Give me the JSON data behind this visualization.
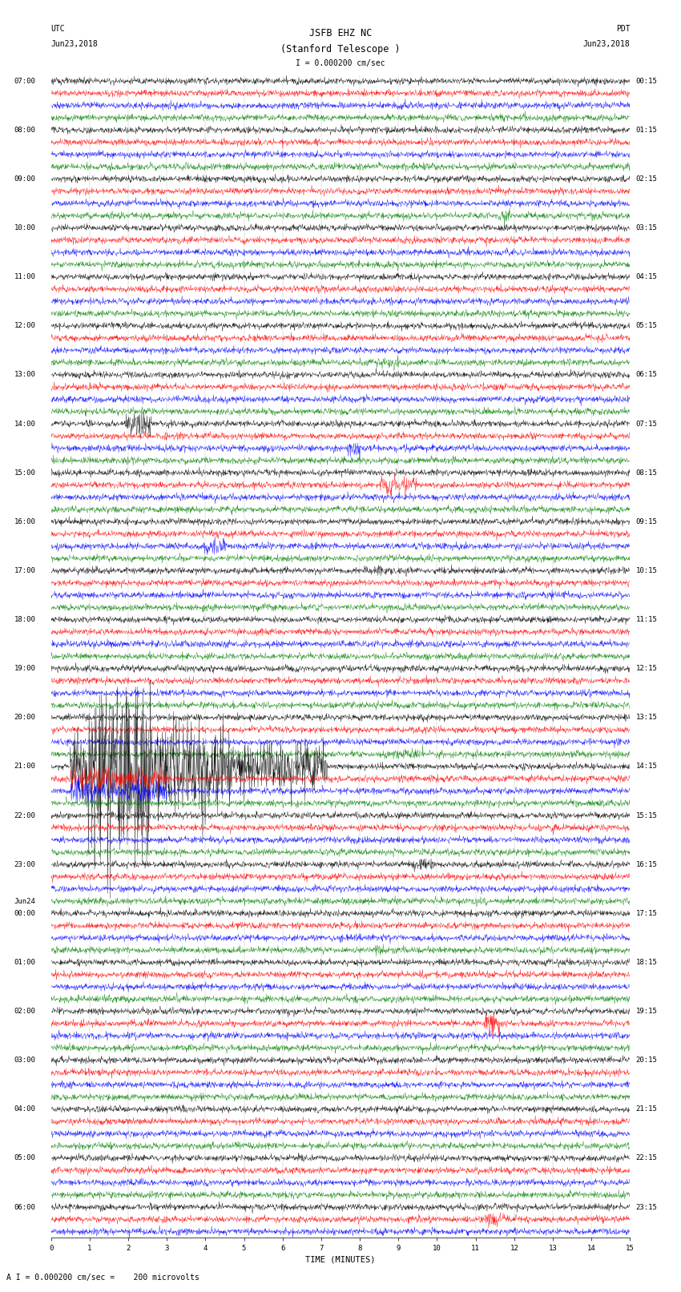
{
  "title_line1": "JSFB EHZ NC",
  "title_line2": "(Stanford Telescope )",
  "scale_label": "I = 0.000200 cm/sec",
  "bottom_label": "A I = 0.000200 cm/sec =    200 microvolts",
  "xlabel": "TIME (MINUTES)",
  "utc_label": "UTC",
  "utc_date": "Jun23,2018",
  "pdt_label": "PDT",
  "pdt_date": "Jun23,2018",
  "left_times_labels": [
    [
      "07:00",
      0
    ],
    [
      "08:00",
      4
    ],
    [
      "09:00",
      8
    ],
    [
      "10:00",
      12
    ],
    [
      "11:00",
      16
    ],
    [
      "12:00",
      20
    ],
    [
      "13:00",
      24
    ],
    [
      "14:00",
      28
    ],
    [
      "15:00",
      32
    ],
    [
      "16:00",
      36
    ],
    [
      "17:00",
      40
    ],
    [
      "18:00",
      44
    ],
    [
      "19:00",
      48
    ],
    [
      "20:00",
      52
    ],
    [
      "21:00",
      56
    ],
    [
      "22:00",
      60
    ],
    [
      "23:00",
      64
    ],
    [
      "Jun24",
      67
    ],
    [
      "00:00",
      68
    ],
    [
      "01:00",
      72
    ],
    [
      "02:00",
      76
    ],
    [
      "03:00",
      80
    ],
    [
      "04:00",
      84
    ],
    [
      "05:00",
      88
    ],
    [
      "06:00",
      92
    ]
  ],
  "right_times_labels": [
    [
      "00:15",
      0
    ],
    [
      "01:15",
      4
    ],
    [
      "02:15",
      8
    ],
    [
      "03:15",
      12
    ],
    [
      "04:15",
      16
    ],
    [
      "05:15",
      20
    ],
    [
      "06:15",
      24
    ],
    [
      "07:15",
      28
    ],
    [
      "08:15",
      32
    ],
    [
      "09:15",
      36
    ],
    [
      "10:15",
      40
    ],
    [
      "11:15",
      44
    ],
    [
      "12:15",
      48
    ],
    [
      "13:15",
      52
    ],
    [
      "14:15",
      56
    ],
    [
      "15:15",
      60
    ],
    [
      "16:15",
      64
    ],
    [
      "17:15",
      68
    ],
    [
      "18:15",
      72
    ],
    [
      "19:15",
      76
    ],
    [
      "20:15",
      80
    ],
    [
      "21:15",
      84
    ],
    [
      "22:15",
      88
    ],
    [
      "23:15",
      92
    ]
  ],
  "trace_colors": [
    "black",
    "red",
    "blue",
    "green"
  ],
  "n_traces": 95,
  "xmin": 0,
  "xmax": 15,
  "bg_color": "white",
  "title_fontsize": 8.5,
  "label_fontsize": 7,
  "tick_fontsize": 6.5,
  "earthquake_trace": 56,
  "earthquake_minute": 0.5
}
